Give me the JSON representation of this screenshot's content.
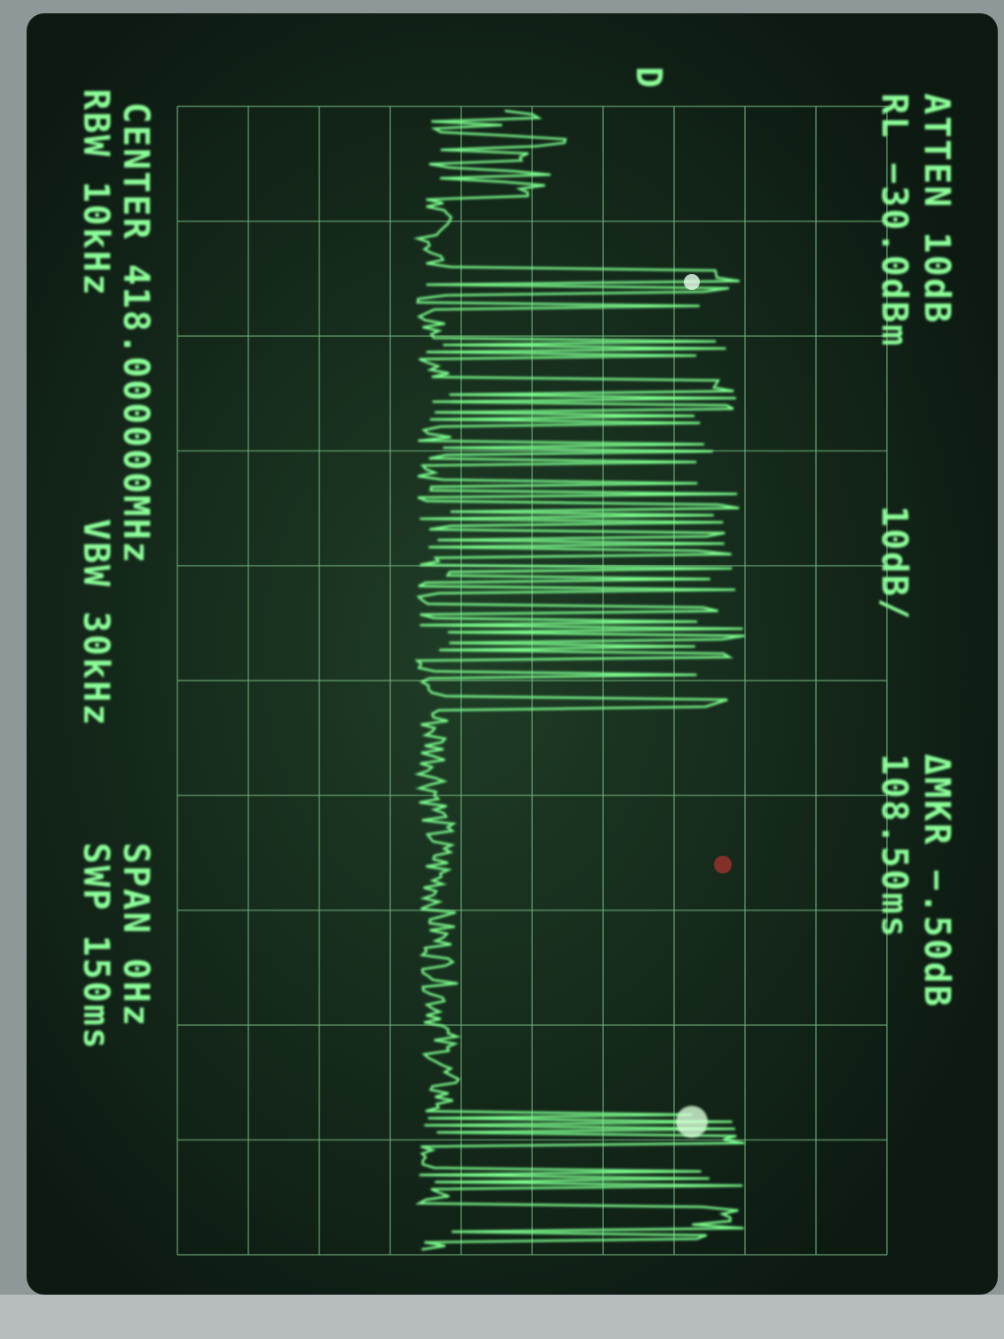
{
  "screen": {
    "top_left": [
      "ATTEN 10dB",
      "RL −30.0dBm"
    ],
    "scale": "10dB/",
    "marker": [
      "ΔMKR −.50dB",
      "108.50ms"
    ],
    "trace_label": "D",
    "bottom_left": [
      "CENTER 418.000000MHz",
      "RBW 10kHz"
    ],
    "vbw": "VBW 30kHz",
    "bottom_right": [
      "SPAN 0Hz",
      "SWP 150ms"
    ]
  }
}
